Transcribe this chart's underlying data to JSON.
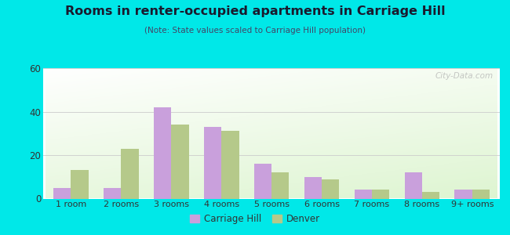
{
  "title": "Rooms in renter-occupied apartments in Carriage Hill",
  "subtitle": "(Note: State values scaled to Carriage Hill population)",
  "categories": [
    "1 room",
    "2 rooms",
    "3 rooms",
    "4 rooms",
    "5 rooms",
    "6 rooms",
    "7 rooms",
    "8 rooms",
    "9+ rooms"
  ],
  "carriage_hill": [
    5,
    5,
    42,
    33,
    16,
    10,
    4,
    12,
    4
  ],
  "denver": [
    13,
    23,
    34,
    31,
    12,
    9,
    4,
    3,
    4
  ],
  "carriage_hill_color": "#c9a0dc",
  "denver_color": "#b5c98a",
  "bg_outer": "#00e8e8",
  "ylim": [
    0,
    60
  ],
  "yticks": [
    0,
    20,
    40,
    60
  ],
  "bar_width": 0.35,
  "legend_ch": "Carriage Hill",
  "legend_den": "Denver",
  "watermark": "City-Data.com",
  "title_color": "#1a1a2e",
  "subtitle_color": "#444466"
}
